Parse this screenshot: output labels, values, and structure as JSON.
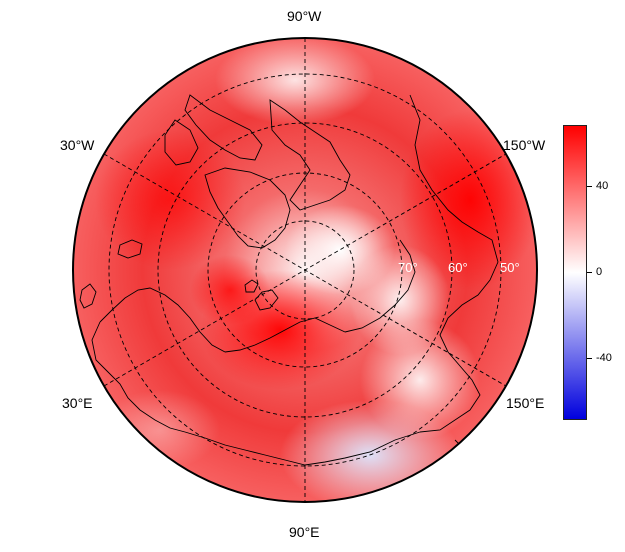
{
  "map": {
    "projection": "north-polar-stereographic",
    "longitude_labels": [
      "90°W",
      "30°W",
      "150°W",
      "30°E",
      "150°E",
      "90°E"
    ],
    "latitude_labels": [
      "70°",
      "60°",
      "50°"
    ]
  },
  "colorbar": {
    "ticks": [
      "40",
      "0",
      "-40"
    ],
    "color_max": "#ff0000",
    "color_mid": "#ffffff",
    "color_min": "#0000dd"
  },
  "colors": {
    "high_anomaly": "#ff0000",
    "neutral": "#ffffff",
    "low_anomaly": "#0000dd",
    "coastline": "#000000",
    "grid_line": "#000000"
  }
}
